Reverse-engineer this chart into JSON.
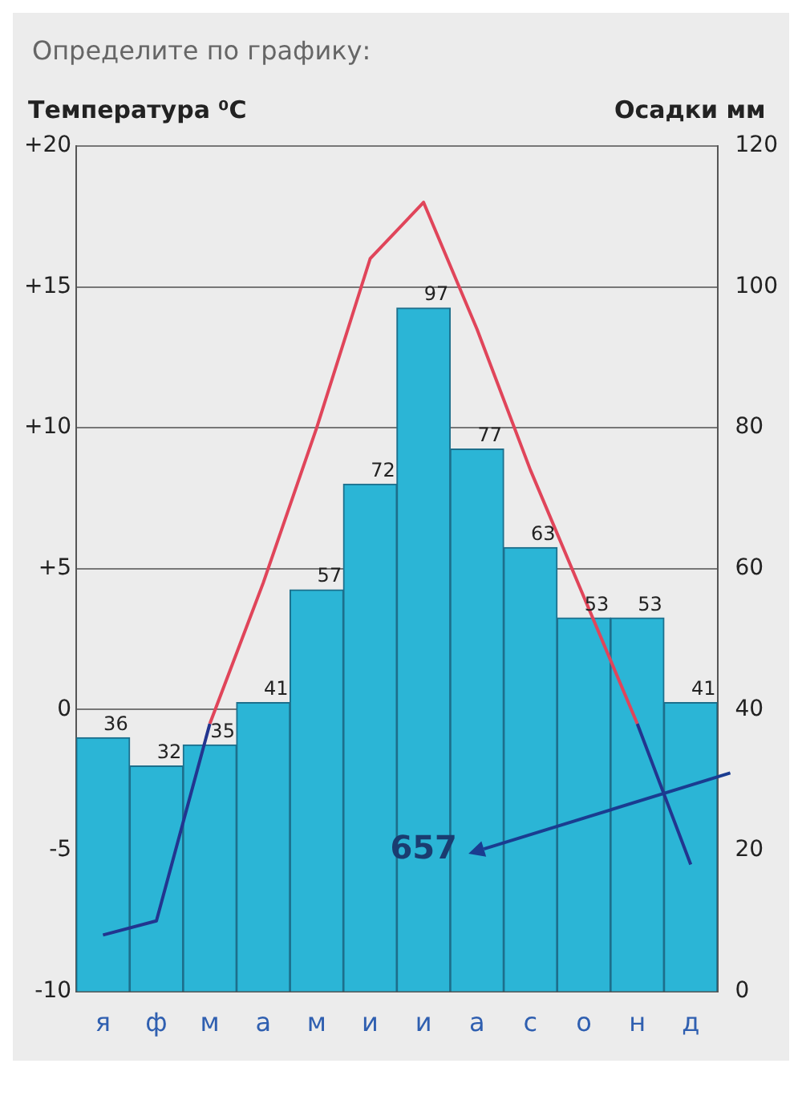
{
  "chart_data": {
    "type": "bar",
    "annotations": [
      "Определите по графику:",
      "657"
    ],
    "ylabel": "Температура ⁰C",
    "y2label": "Осадки мм",
    "categories": [
      "я",
      "ф",
      "м",
      "а",
      "м",
      "и",
      "и",
      "а",
      "с",
      "о",
      "н",
      "д"
    ],
    "series": [
      {
        "axis": "y2",
        "color": "#2bb5d6",
        "values": [
          36,
          32,
          35,
          41,
          57,
          72,
          97,
          77,
          63,
          53,
          53,
          41
        ],
        "value_labels": [
          "36",
          "32",
          "35",
          "41",
          "57",
          "72",
          "97",
          "77",
          "63",
          "53",
          "53",
          "41"
        ]
      },
      {
        "type": "line",
        "axis": "y",
        "color": "#e0455a",
        "values": [
          null,
          null,
          -0.5,
          4.5,
          10,
          16,
          18,
          13.5,
          8.5,
          4,
          -0.5,
          null
        ]
      },
      {
        "type": "line",
        "axis": "y",
        "color": "#22358f",
        "values": [
          -8,
          -7.5,
          -0.5,
          null,
          null,
          null,
          null,
          null,
          null,
          null,
          -0.5,
          -5.5
        ]
      }
    ],
    "ylim": [
      -10,
      20
    ],
    "yticks": [
      -10,
      -5,
      0,
      {
        "value": 5,
        "label": "+5"
      },
      {
        "value": 10,
        "label": "+10"
      },
      {
        "value": 15,
        "label": "+15"
      },
      {
        "value": 20,
        "label": "+20"
      }
    ],
    "y2lim": [
      0,
      120
    ],
    "y2ticks": [
      0,
      20,
      40,
      60,
      80,
      100,
      120
    ],
    "grid": "y"
  }
}
